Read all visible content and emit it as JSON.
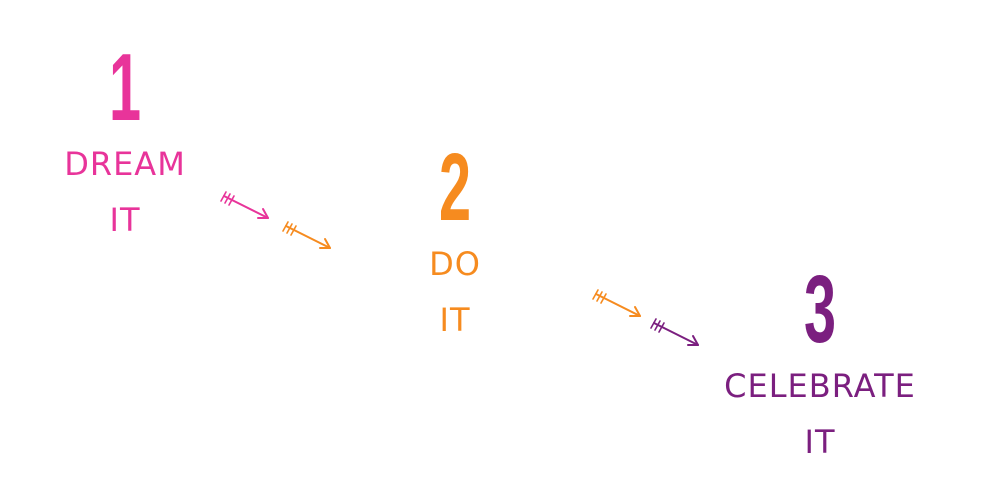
{
  "colors": {
    "pink": "#e8349a",
    "orange": "#f68b1f",
    "purple": "#7b1f7f"
  },
  "steps": [
    {
      "number": "1",
      "line1": "DREAM",
      "line2": "IT",
      "color": "#e8349a"
    },
    {
      "number": "2",
      "line1": "DO",
      "line2": "IT",
      "color": "#f68b1f"
    },
    {
      "number": "3",
      "line1": "CELEBRATE",
      "line2": "IT",
      "color": "#7b1f7f"
    }
  ],
  "arrows": [
    {
      "name": "arrow-pink-1",
      "icon": "arrow-icon",
      "color": "#e8349a"
    },
    {
      "name": "arrow-orange-1",
      "icon": "arrow-icon",
      "color": "#f68b1f"
    },
    {
      "name": "arrow-orange-2",
      "icon": "arrow-icon",
      "color": "#f68b1f"
    },
    {
      "name": "arrow-purple-1",
      "icon": "arrow-icon",
      "color": "#7b1f7f"
    }
  ]
}
